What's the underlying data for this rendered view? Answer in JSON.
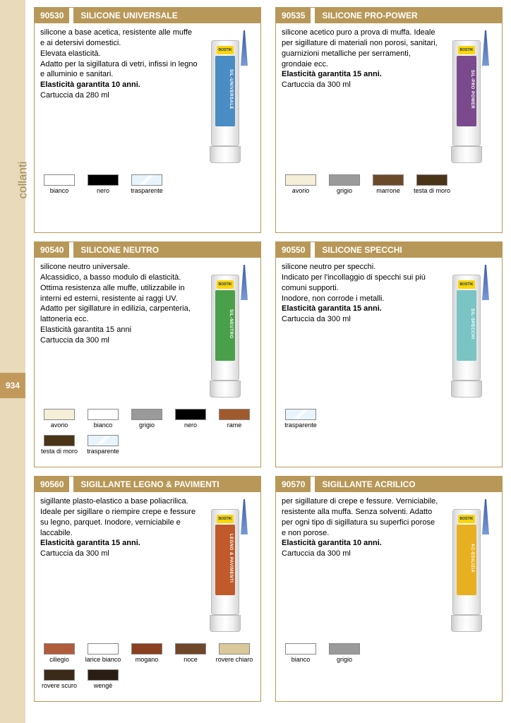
{
  "sidebar": {
    "label": "collanti",
    "page": "934"
  },
  "colors": {
    "bianco": "#ffffff",
    "nero": "#000000",
    "trasparente": "#e8f4fb",
    "avorio": "#f5eed8",
    "grigio": "#9a9a9a",
    "marrone": "#6b4a2a",
    "testa_di_moro": "#4a3418",
    "rame": "#a05a2c",
    "ciliegio": "#b05c3c",
    "larice_bianco": "#ffffff",
    "mogano": "#8b4020",
    "noce": "#6e4628",
    "rovere_chiaro": "#d8c89a",
    "rovere_scuro": "#3a2a1a",
    "wenge": "#2a1e14"
  },
  "tubeLabels": {
    "90530": "#4a8cc4",
    "90535": "#7a4a8c",
    "90540": "#4aa04a",
    "90550": "#7ac4c4",
    "90560": "#c05a2a",
    "90570": "#e8b020"
  },
  "products": [
    {
      "code": "90530",
      "title": "SILICONE UNIVERSALE",
      "desc": "silicone a base acetica, resistente alle muffe e ai detersivi domestici.\nElevata elasticità.\nAdatto per la sigillatura di vetri, infissi in legno e alluminio e sanitari.",
      "bold": "Elasticità garantita 10 anni.",
      "qty": "Cartuccia da 280 ml",
      "tubeName": "SIL-UNIVERSALE",
      "swatches": [
        {
          "k": "bianco",
          "l": "bianco"
        },
        {
          "k": "nero",
          "l": "nero"
        },
        {
          "k": "trasparente",
          "l": "trasparente"
        }
      ]
    },
    {
      "code": "90535",
      "title": "SILICONE PRO-POWER",
      "desc": "silicone acetico puro a prova di muffa. Ideale per sigillature di materiali non porosi, sanitari, guarnizioni metalliche per serramenti, grondaie ecc.",
      "bold": "Elasticità garantita 15 anni.",
      "qty": "Cartuccia da 300 ml",
      "tubeName": "SIL-PRO POWER",
      "swatches": [
        {
          "k": "avorio",
          "l": "avorio"
        },
        {
          "k": "grigio",
          "l": "grigio"
        },
        {
          "k": "marrone",
          "l": "marrone"
        },
        {
          "k": "testa_di_moro",
          "l": "testa di moro"
        }
      ]
    },
    {
      "code": "90540",
      "title": "SILICONE NEUTRO",
      "desc": "silicone neutro universale.\nAlcassidico, a basso modulo di elasticità.\nOttima resistenza alle muffe, utilizzabile in interni ed esterni, resistente ai raggi UV.\nAdatto per sigillature in edilizia, carpenteria, lattoneria ecc.\nElasticità garantita 15 anni",
      "bold": "",
      "qty": "Cartuccia da 300 ml",
      "tubeName": "SIL-NEUTRO",
      "swatches": [
        {
          "k": "avorio",
          "l": "avorio"
        },
        {
          "k": "bianco",
          "l": "bianco"
        },
        {
          "k": "grigio",
          "l": "grigio"
        },
        {
          "k": "nero",
          "l": "nero"
        },
        {
          "k": "rame",
          "l": "rame"
        },
        {
          "k": "testa_di_moro",
          "l": "testa di moro"
        },
        {
          "k": "trasparente",
          "l": "trasparente"
        }
      ]
    },
    {
      "code": "90550",
      "title": "SILICONE SPECCHI",
      "desc": "silicone neutro per specchi.\nIndicato per l'incollaggio di specchi sui più comuni supporti.\nInodore, non corrode i metalli.",
      "bold": "Elasticità garantita 15 anni.",
      "qty": "Cartuccia da 300 ml",
      "tubeName": "SIL-SPECCHI",
      "swatches": [
        {
          "k": "trasparente",
          "l": "trasparente"
        }
      ]
    },
    {
      "code": "90560",
      "title": "SIGILLANTE LEGNO & PAVIMENTI",
      "desc": "sigillante plasto-elastico a base poliacrilica. Ideale per sigillare o riempire crepe e fessure su legno, parquet. Inodore, verniciabile e laccabile.",
      "bold": "Elasticità garantita 15 anni.",
      "qty": "Cartuccia da 300 ml",
      "tubeName": "LEGNO & PAVIMENTI",
      "swatches": [
        {
          "k": "ciliegio",
          "l": "ciliegio"
        },
        {
          "k": "larice_bianco",
          "l": "larice bianco"
        },
        {
          "k": "mogano",
          "l": "mogano"
        },
        {
          "k": "noce",
          "l": "noce"
        },
        {
          "k": "rovere_chiaro",
          "l": "rovere chiaro"
        },
        {
          "k": "rovere_scuro",
          "l": "rovere scuro"
        },
        {
          "k": "wenge",
          "l": "wengè"
        }
      ]
    },
    {
      "code": "90570",
      "title": "SIGILLANTE ACRILICO",
      "desc": "per sigillature di crepe e fessure. Verniciabile, resistente alla muffa. Senza solventi. Adatto per ogni tipo di sigillatura su superfici porose e non porose.",
      "bold": "Elasticità garantita 10 anni.",
      "qty": "Cartuccia da 300 ml",
      "tubeName": "AC-EDILIZIA",
      "swatches": [
        {
          "k": "bianco",
          "l": "bianco"
        },
        {
          "k": "grigio",
          "l": "grigio"
        }
      ]
    }
  ]
}
